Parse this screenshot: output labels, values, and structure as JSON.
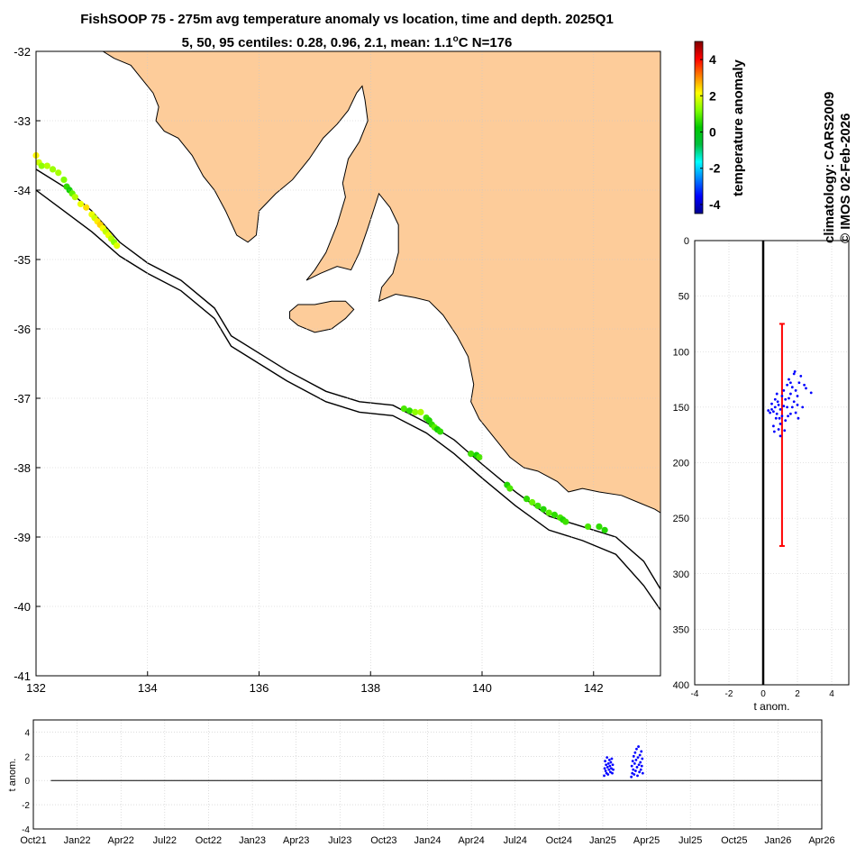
{
  "title": {
    "line1": "FishSOOP 75 - 275m avg temperature anomaly vs location, time and depth. 2025Q1",
    "line2_prefix": "5, 50, 95 centiles: 0.28, 0.96, 2.1, mean: 1.1",
    "line2_sup": "o",
    "line2_suffix": "C N=176"
  },
  "side_notes": {
    "climatology": "climatology: CARS2009",
    "copyright": "© IMOS 02-Feb-2026"
  },
  "colors": {
    "land": "#fdcc9a",
    "grid": "#c8c8c8",
    "points": "#0000ff",
    "errorbar": "#ff0000"
  },
  "chart_data": [
    {
      "type": "scatter",
      "name": "map",
      "xlim": [
        132,
        143.2
      ],
      "ylim": [
        -41,
        -32
      ],
      "xticks": [
        132,
        134,
        136,
        138,
        140,
        142
      ],
      "yticks": [
        -32,
        -33,
        -34,
        -35,
        -36,
        -37,
        -38,
        -39,
        -40,
        -41
      ],
      "points": [
        [
          132.0,
          -33.5,
          2.2
        ],
        [
          132.05,
          -33.6,
          1.8
        ],
        [
          132.1,
          -33.65,
          1.3
        ],
        [
          132.2,
          -33.65,
          1.6
        ],
        [
          132.3,
          -33.7,
          1.4
        ],
        [
          132.4,
          -33.75,
          1.5
        ],
        [
          132.5,
          -33.85,
          1.2
        ],
        [
          132.55,
          -33.95,
          0.6
        ],
        [
          132.6,
          -34.0,
          0.4
        ],
        [
          132.65,
          -34.05,
          1.0
        ],
        [
          132.7,
          -34.1,
          1.6
        ],
        [
          132.8,
          -34.2,
          2.0
        ],
        [
          132.9,
          -34.25,
          2.4
        ],
        [
          133.0,
          -34.35,
          2.0
        ],
        [
          133.05,
          -34.4,
          1.8
        ],
        [
          133.1,
          -34.45,
          2.3
        ],
        [
          133.15,
          -34.5,
          2.5
        ],
        [
          133.2,
          -34.55,
          2.1
        ],
        [
          133.25,
          -34.6,
          1.7
        ],
        [
          133.3,
          -34.65,
          2.0
        ],
        [
          133.35,
          -34.7,
          1.6
        ],
        [
          133.4,
          -34.75,
          1.3
        ],
        [
          133.45,
          -34.8,
          1.9
        ],
        [
          138.6,
          -37.15,
          0.8
        ],
        [
          138.7,
          -37.18,
          0.6
        ],
        [
          138.8,
          -37.2,
          1.3
        ],
        [
          138.9,
          -37.2,
          1.5
        ],
        [
          139.0,
          -37.28,
          0.7
        ],
        [
          139.05,
          -37.32,
          0.5
        ],
        [
          139.1,
          -37.38,
          0.6
        ],
        [
          139.15,
          -37.42,
          0.9
        ],
        [
          139.2,
          -37.45,
          0.4
        ],
        [
          139.25,
          -37.48,
          0.6
        ],
        [
          139.8,
          -37.8,
          0.7
        ],
        [
          139.9,
          -37.82,
          0.4
        ],
        [
          139.95,
          -37.85,
          0.8
        ],
        [
          140.45,
          -38.25,
          0.5
        ],
        [
          140.5,
          -38.3,
          0.8
        ],
        [
          140.8,
          -38.45,
          0.6
        ],
        [
          140.9,
          -38.5,
          1.0
        ],
        [
          141.0,
          -38.55,
          0.7
        ],
        [
          141.1,
          -38.6,
          0.5
        ],
        [
          141.2,
          -38.65,
          0.9
        ],
        [
          141.3,
          -38.68,
          0.6
        ],
        [
          141.4,
          -38.72,
          0.8
        ],
        [
          141.45,
          -38.75,
          0.5
        ],
        [
          141.5,
          -38.78,
          0.7
        ],
        [
          141.9,
          -38.85,
          0.8
        ],
        [
          142.1,
          -38.85,
          0.6
        ],
        [
          142.2,
          -38.9,
          0.5
        ]
      ]
    },
    {
      "type": "scatter",
      "name": "depth_profile",
      "xlabel": "t anom.",
      "xlim": [
        -4,
        5
      ],
      "ylim": [
        0,
        400
      ],
      "xticks": [
        -4,
        -2,
        0,
        2,
        4
      ],
      "yticks": [
        0,
        50,
        100,
        150,
        200,
        250,
        300,
        350,
        400
      ],
      "errorbar": {
        "x": 1.1,
        "y_top": 75,
        "y_bottom": 275
      },
      "points": [
        [
          0.3,
          153
        ],
        [
          0.4,
          155
        ],
        [
          0.5,
          152
        ],
        [
          0.6,
          154
        ],
        [
          0.7,
          150
        ],
        [
          0.8,
          156
        ],
        [
          0.9,
          148
        ],
        [
          1.0,
          152
        ],
        [
          0.85,
          145
        ],
        [
          0.95,
          160
        ],
        [
          1.0,
          165
        ],
        [
          0.7,
          143
        ],
        [
          0.9,
          170
        ],
        [
          1.1,
          158
        ],
        [
          1.2,
          149
        ],
        [
          0.8,
          138
        ],
        [
          1.3,
          162
        ],
        [
          0.6,
          167
        ],
        [
          1.0,
          176
        ],
        [
          0.5,
          147
        ],
        [
          1.4,
          130
        ],
        [
          1.5,
          125
        ],
        [
          1.6,
          128
        ],
        [
          1.7,
          132
        ],
        [
          1.8,
          120
        ],
        [
          1.9,
          135
        ],
        [
          2.0,
          140
        ],
        [
          1.6,
          138
        ],
        [
          1.8,
          145
        ],
        [
          2.1,
          128
        ],
        [
          2.2,
          122
        ],
        [
          2.5,
          133
        ],
        [
          2.8,
          137
        ],
        [
          1.5,
          142
        ],
        [
          1.7,
          150
        ],
        [
          1.9,
          155
        ],
        [
          2.0,
          148
        ],
        [
          1.3,
          143
        ],
        [
          1.4,
          150
        ],
        [
          1.6,
          156
        ],
        [
          2.3,
          150
        ],
        [
          1.2,
          135
        ],
        [
          1.1,
          140
        ],
        [
          1.85,
          118
        ],
        [
          2.4,
          130
        ],
        [
          1.45,
          158
        ],
        [
          2.05,
          160
        ],
        [
          0.75,
          160
        ],
        [
          1.25,
          171
        ],
        [
          0.65,
          172
        ]
      ]
    },
    {
      "type": "scatter",
      "name": "time_series",
      "ylabel": "t anom.",
      "ylim": [
        -4,
        5
      ],
      "yticks": [
        4,
        2,
        0,
        -2,
        -4
      ],
      "x_tick_labels": [
        "Oct21",
        "Jan22",
        "Apr22",
        "Jul22",
        "Oct22",
        "Jan23",
        "Apr23",
        "Jul23",
        "Oct23",
        "Jan24",
        "Apr24",
        "Jul24",
        "Oct24",
        "Jan25",
        "Apr25",
        "Jul25",
        "Oct25",
        "Jan26",
        "Apr26"
      ],
      "points": [
        [
          "2025-01-12",
          0.4
        ],
        [
          "2025-01-13",
          1.0
        ],
        [
          "2025-01-14",
          1.6
        ],
        [
          "2025-01-15",
          0.8
        ],
        [
          "2025-01-16",
          1.3
        ],
        [
          "2025-01-17",
          0.6
        ],
        [
          "2025-01-18",
          1.9
        ],
        [
          "2025-01-19",
          1.1
        ],
        [
          "2025-01-20",
          0.5
        ],
        [
          "2025-01-21",
          1.4
        ],
        [
          "2025-01-22",
          0.9
        ],
        [
          "2025-01-23",
          1.7
        ],
        [
          "2025-01-24",
          1.2
        ],
        [
          "2025-01-25",
          0.7
        ],
        [
          "2025-01-26",
          1.5
        ],
        [
          "2025-01-27",
          1.0
        ],
        [
          "2025-01-28",
          1.8
        ],
        [
          "2025-01-29",
          0.6
        ],
        [
          "2025-01-30",
          1.3
        ],
        [
          "2025-01-31",
          0.9
        ],
        [
          "2025-03-10",
          0.3
        ],
        [
          "2025-03-11",
          1.2
        ],
        [
          "2025-03-12",
          0.6
        ],
        [
          "2025-03-13",
          1.6
        ],
        [
          "2025-03-14",
          0.9
        ],
        [
          "2025-03-15",
          2.0
        ],
        [
          "2025-03-16",
          0.5
        ],
        [
          "2025-03-17",
          1.4
        ],
        [
          "2025-03-18",
          2.3
        ],
        [
          "2025-03-19",
          0.8
        ],
        [
          "2025-03-20",
          1.7
        ],
        [
          "2025-03-21",
          2.6
        ],
        [
          "2025-03-22",
          1.1
        ],
        [
          "2025-03-23",
          0.4
        ],
        [
          "2025-03-24",
          1.9
        ],
        [
          "2025-03-25",
          2.8
        ],
        [
          "2025-03-26",
          1.3
        ],
        [
          "2025-03-27",
          0.7
        ],
        [
          "2025-03-28",
          2.1
        ],
        [
          "2025-03-29",
          1.5
        ],
        [
          "2025-03-30",
          0.9
        ],
        [
          "2025-03-31",
          2.4
        ],
        [
          "2025-04-01",
          1.2
        ],
        [
          "2025-04-02",
          1.8
        ],
        [
          "2025-04-03",
          0.6
        ]
      ]
    },
    {
      "type": "heatmap",
      "name": "colorbar",
      "label": "temperature anomaly",
      "range": [
        -4.5,
        5
      ],
      "ticks": [
        4,
        2,
        0,
        -2,
        -4
      ],
      "colormap": [
        "#00008f",
        "#0000ff",
        "#0080ff",
        "#00ffff",
        "#00c040",
        "#00c800",
        "#80ff00",
        "#ffff00",
        "#ff8000",
        "#ff0000",
        "#800000"
      ]
    }
  ]
}
